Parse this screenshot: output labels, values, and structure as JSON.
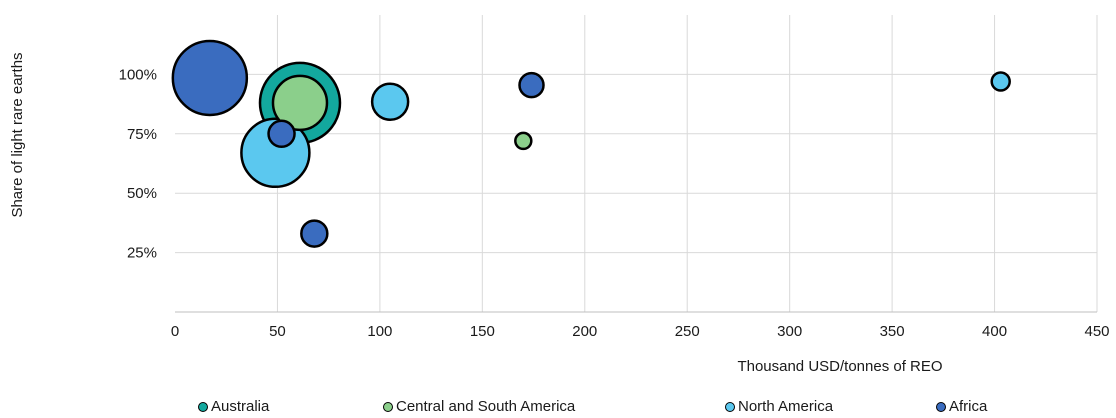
{
  "chart_data": {
    "type": "scatter",
    "xlabel": "Thousand USD/tonnes of REO",
    "ylabel": "Share of light rare earths",
    "xlim": [
      0,
      450
    ],
    "ylim": [
      0,
      1.25
    ],
    "x_ticks": [
      "0",
      "50",
      "100",
      "150",
      "200",
      "250",
      "300",
      "350",
      "400",
      "450"
    ],
    "y_ticks": [
      "25%",
      "50%",
      "75%",
      "100%"
    ],
    "grid": "vertical and horizontal",
    "legend_position": "bottom",
    "series": [
      {
        "name": "Australia",
        "color": "#13a89e",
        "points": [
          {
            "x": 61,
            "y": 0.88,
            "size": 40
          }
        ]
      },
      {
        "name": "Central and South America",
        "color": "#8bcf8b",
        "points": [
          {
            "x": 61,
            "y": 0.88,
            "size": 27
          },
          {
            "x": 170,
            "y": 0.72,
            "size": 8
          }
        ]
      },
      {
        "name": "North America",
        "color": "#5bc8ef",
        "points": [
          {
            "x": 105,
            "y": 0.885,
            "size": 18
          },
          {
            "x": 49,
            "y": 0.67,
            "size": 34
          },
          {
            "x": 403,
            "y": 0.97,
            "size": 9
          }
        ]
      },
      {
        "name": "Africa",
        "color": "#3a6cbf",
        "points": [
          {
            "x": 17,
            "y": 0.985,
            "size": 37
          },
          {
            "x": 174,
            "y": 0.955,
            "size": 12
          },
          {
            "x": 52,
            "y": 0.75,
            "size": 13
          },
          {
            "x": 68,
            "y": 0.33,
            "size": 13
          }
        ]
      }
    ]
  }
}
